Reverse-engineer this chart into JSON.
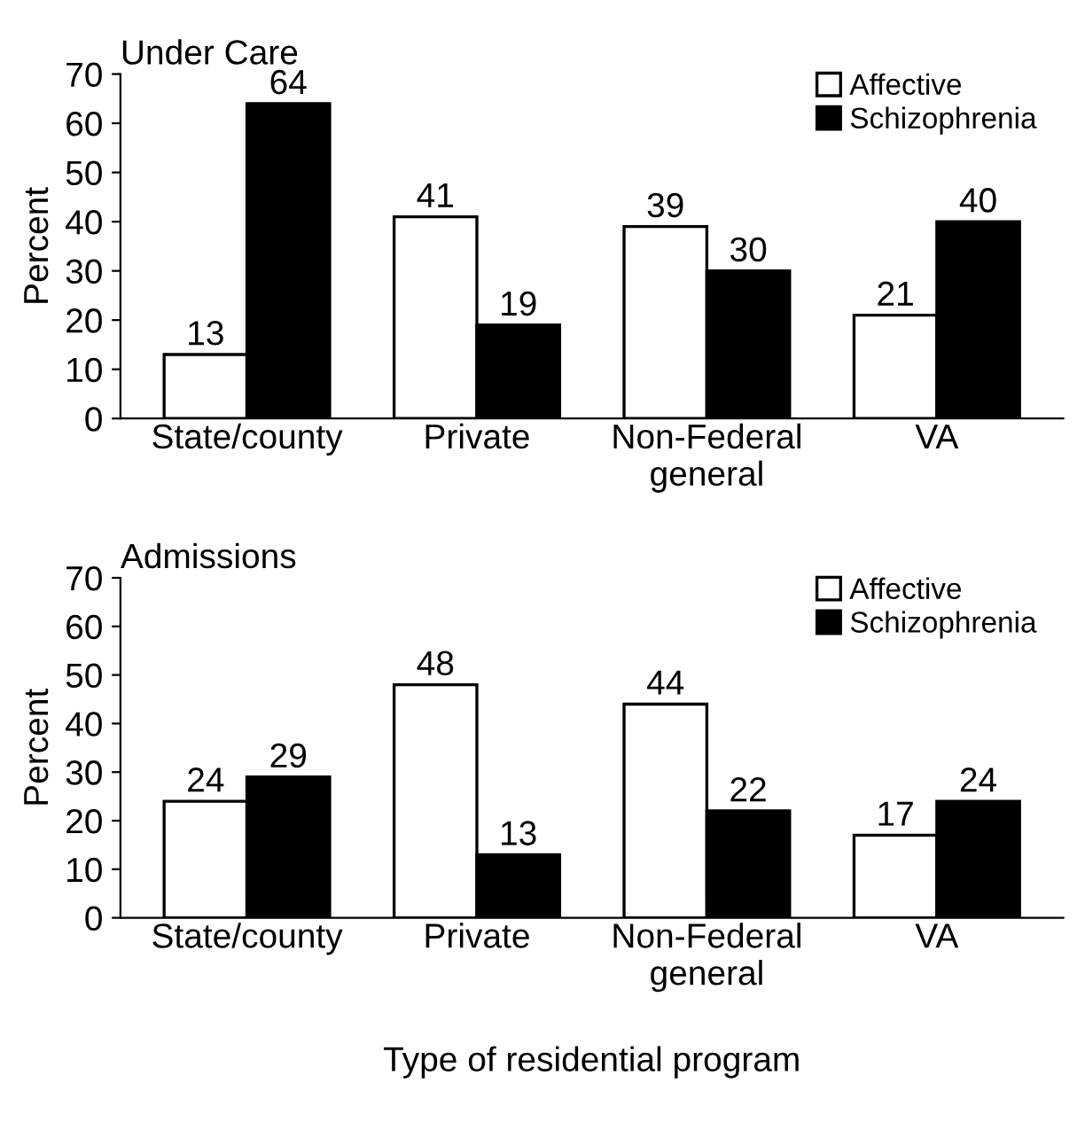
{
  "chart_data": [
    {
      "type": "bar",
      "title": "Under Care",
      "ylabel": "Percent",
      "categories": [
        "State/county",
        "Private",
        "Non-Federal\ngeneral",
        "VA"
      ],
      "series": [
        {
          "name": "Affective",
          "color": "#ffffff",
          "values": [
            13,
            41,
            39,
            21
          ]
        },
        {
          "name": "Schizophrenia",
          "color": "#000000",
          "values": [
            64,
            19,
            30,
            40
          ]
        }
      ],
      "ylim": [
        0,
        70
      ],
      "yticks": [
        0,
        10,
        20,
        30,
        40,
        50,
        60,
        70
      ],
      "data_labels": true,
      "legend": "top right",
      "grid": false
    },
    {
      "type": "bar",
      "title": "Admissions",
      "ylabel": "Percent",
      "xlabel": "Type of residential program",
      "categories": [
        "State/county",
        "Private",
        "Non-Federal\ngeneral",
        "VA"
      ],
      "series": [
        {
          "name": "Affective",
          "color": "#ffffff",
          "values": [
            24,
            48,
            44,
            17
          ]
        },
        {
          "name": "Schizophrenia",
          "color": "#000000",
          "values": [
            29,
            13,
            22,
            24
          ]
        }
      ],
      "ylim": [
        0,
        70
      ],
      "yticks": [
        0,
        10,
        20,
        30,
        40,
        50,
        60,
        70
      ],
      "data_labels": true,
      "legend": "top right",
      "grid": false
    }
  ]
}
